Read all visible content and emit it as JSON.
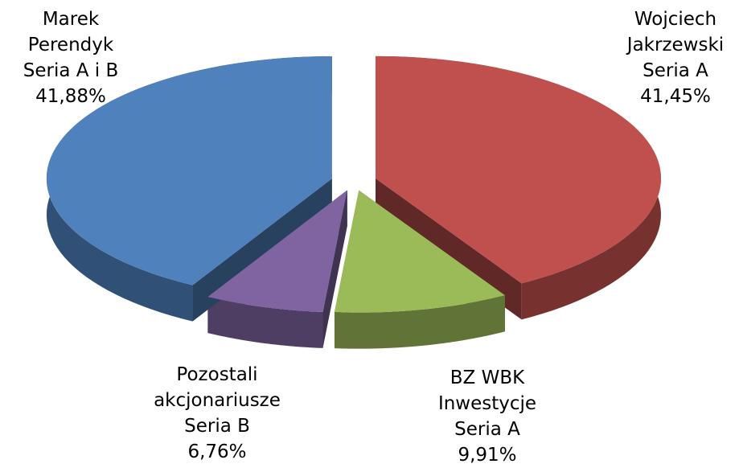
{
  "chart_data": {
    "type": "pie",
    "categories": [
      "Wojciech\nJakrzewski\nSeria A",
      "BZ WBK\nInwestycje\nSeria A",
      "Pozostali\nakcjonariusze\nSeria B",
      "Marek\nPerendyk\nSeria A i B"
    ],
    "values": [
      41.45,
      9.91,
      6.76,
      41.88
    ],
    "value_labels": [
      "41,45%",
      "9,91%",
      "6,76%",
      "41,88%"
    ],
    "colors": [
      "#c0504d",
      "#9bbb59",
      "#8064a2",
      "#4f81bd"
    ]
  }
}
